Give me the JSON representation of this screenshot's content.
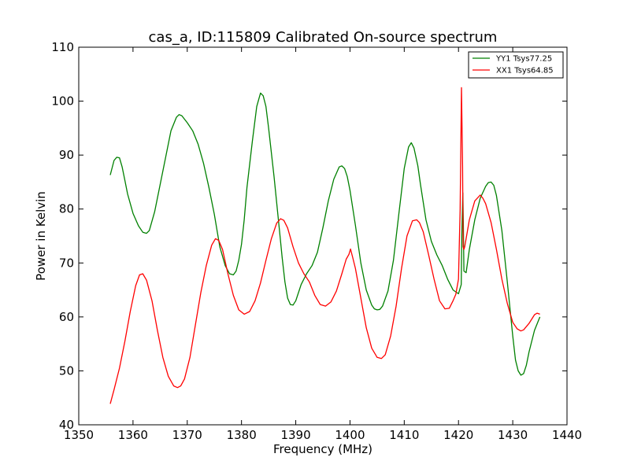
{
  "chart_data": {
    "type": "line",
    "title": "cas_a, ID:115809 Calibrated On-source spectrum",
    "xlabel": "Frequency (MHz)",
    "ylabel": "Power in Kelvin",
    "xlim": [
      1350,
      1440
    ],
    "ylim": [
      40,
      110
    ],
    "xticks": [
      1350,
      1360,
      1370,
      1380,
      1390,
      1400,
      1410,
      1420,
      1430,
      1440
    ],
    "yticks": [
      40,
      50,
      60,
      70,
      80,
      90,
      100,
      110
    ],
    "grid": false,
    "legend_position": "top-right",
    "series": [
      {
        "name": "YY1 Tsys77.25",
        "color": "#008000",
        "x": [
          1355.8,
          1356.5,
          1357.0,
          1357.5,
          1358.0,
          1358.5,
          1359.0,
          1360.0,
          1361.0,
          1361.8,
          1362.5,
          1363.0,
          1364.0,
          1365.0,
          1366.0,
          1367.0,
          1368.0,
          1368.5,
          1369.0,
          1370.0,
          1371.0,
          1372.0,
          1373.0,
          1374.0,
          1375.0,
          1376.0,
          1377.0,
          1377.8,
          1378.5,
          1379.0,
          1379.5,
          1380.0,
          1380.5,
          1381.0,
          1382.0,
          1382.8,
          1383.5,
          1384.0,
          1384.5,
          1385.0,
          1386.0,
          1387.0,
          1387.5,
          1388.0,
          1388.5,
          1389.0,
          1389.5,
          1390.0,
          1391.0,
          1392.0,
          1393.0,
          1394.0,
          1395.0,
          1396.0,
          1397.0,
          1398.0,
          1398.5,
          1399.0,
          1399.5,
          1400.0,
          1401.0,
          1402.0,
          1403.0,
          1404.0,
          1404.5,
          1405.0,
          1405.5,
          1406.0,
          1407.0,
          1408.0,
          1409.0,
          1410.0,
          1410.8,
          1411.3,
          1411.8,
          1412.5,
          1413.0,
          1414.0,
          1415.0,
          1416.0,
          1417.0,
          1418.0,
          1419.0,
          1420.0,
          1420.5,
          1420.6,
          1420.8,
          1420.9,
          1421.0,
          1421.4,
          1422.0,
          1423.0,
          1424.0,
          1425.0,
          1425.5,
          1426.0,
          1426.5,
          1427.0,
          1428.0,
          1429.0,
          1430.0,
          1430.5,
          1431.0,
          1431.5,
          1432.0,
          1432.5,
          1433.0,
          1434.0,
          1435.0
        ],
        "y": [
          86.3,
          89.0,
          89.6,
          89.5,
          87.8,
          85.3,
          82.8,
          79.2,
          76.9,
          75.7,
          75.5,
          76.0,
          79.5,
          84.5,
          89.5,
          94.5,
          97.0,
          97.5,
          97.3,
          96.0,
          94.5,
          92.0,
          88.5,
          84.0,
          79.0,
          73.0,
          69.5,
          68.0,
          67.8,
          68.5,
          70.5,
          73.5,
          78.0,
          84.0,
          92.5,
          99.0,
          101.5,
          101.0,
          99.0,
          95.0,
          86.0,
          76.0,
          71.0,
          66.5,
          63.5,
          62.3,
          62.2,
          63.0,
          66.0,
          68.0,
          69.5,
          72.0,
          76.5,
          81.5,
          85.5,
          87.8,
          88.0,
          87.5,
          86.0,
          83.5,
          77.0,
          70.0,
          65.0,
          62.2,
          61.5,
          61.3,
          61.4,
          62.0,
          64.8,
          70.5,
          79.0,
          87.5,
          91.5,
          92.3,
          91.3,
          88.0,
          84.5,
          78.0,
          74.0,
          71.5,
          69.5,
          67.0,
          65.0,
          64.3,
          66.0,
          75.0,
          83.0,
          77.0,
          68.5,
          68.2,
          72.5,
          78.0,
          82.0,
          84.2,
          84.9,
          85.0,
          84.4,
          82.5,
          76.0,
          66.5,
          56.5,
          52.0,
          50.0,
          49.2,
          49.5,
          51.0,
          53.5,
          57.5,
          60.0
        ]
      },
      {
        "name": "XX1 Tsys64.85",
        "color": "#ff0000",
        "x": [
          1355.8,
          1356.5,
          1357.5,
          1358.5,
          1359.5,
          1360.5,
          1361.2,
          1361.8,
          1362.5,
          1363.5,
          1364.5,
          1365.5,
          1366.5,
          1367.5,
          1368.2,
          1368.8,
          1369.5,
          1370.5,
          1371.5,
          1372.5,
          1373.5,
          1374.5,
          1375.2,
          1375.8,
          1376.5,
          1377.5,
          1378.5,
          1379.5,
          1380.5,
          1381.5,
          1382.5,
          1383.5,
          1384.5,
          1385.5,
          1386.5,
          1387.2,
          1387.8,
          1388.5,
          1389.5,
          1390.5,
          1391.5,
          1392.5,
          1393.5,
          1394.5,
          1395.5,
          1396.5,
          1397.5,
          1398.5,
          1399.3,
          1399.8,
          1400.1,
          1400.5,
          1401.0,
          1402.0,
          1403.0,
          1404.0,
          1405.0,
          1405.8,
          1406.5,
          1407.5,
          1408.5,
          1409.5,
          1410.5,
          1411.5,
          1412.3,
          1412.8,
          1413.5,
          1414.5,
          1415.5,
          1416.5,
          1417.5,
          1418.3,
          1419.0,
          1419.5,
          1420.0,
          1420.3,
          1420.55,
          1420.75,
          1420.85,
          1421.0,
          1421.15,
          1421.4,
          1422.0,
          1423.0,
          1424.0,
          1424.5,
          1425.0,
          1426.0,
          1427.0,
          1428.0,
          1429.0,
          1430.0,
          1430.8,
          1431.5,
          1432.0,
          1433.0,
          1434.0,
          1434.5,
          1435.0
        ],
        "y": [
          43.9,
          46.5,
          50.5,
          55.5,
          61.0,
          65.8,
          67.8,
          68.0,
          66.8,
          63.0,
          57.5,
          52.5,
          49.0,
          47.2,
          46.9,
          47.2,
          48.5,
          52.5,
          58.5,
          64.5,
          69.5,
          73.3,
          74.5,
          74.2,
          72.5,
          68.0,
          64.0,
          61.3,
          60.5,
          61.0,
          63.0,
          66.3,
          70.5,
          74.5,
          77.4,
          78.2,
          77.9,
          76.5,
          73.0,
          70.0,
          68.0,
          66.5,
          64.0,
          62.3,
          62.0,
          62.8,
          64.8,
          68.0,
          70.7,
          71.6,
          72.6,
          71.0,
          69.0,
          63.5,
          58.0,
          54.2,
          52.5,
          52.3,
          53.0,
          56.5,
          62.0,
          69.0,
          75.0,
          77.8,
          78.0,
          77.5,
          75.8,
          71.5,
          67.0,
          63.0,
          61.5,
          61.6,
          63.0,
          64.2,
          67.0,
          80.0,
          102.5,
          88.0,
          73.0,
          72.5,
          73.0,
          74.5,
          78.0,
          81.5,
          82.6,
          82.0,
          81.0,
          77.5,
          72.5,
          67.0,
          62.5,
          59.0,
          57.8,
          57.4,
          57.6,
          58.8,
          60.4,
          60.7,
          60.5
        ]
      }
    ]
  }
}
